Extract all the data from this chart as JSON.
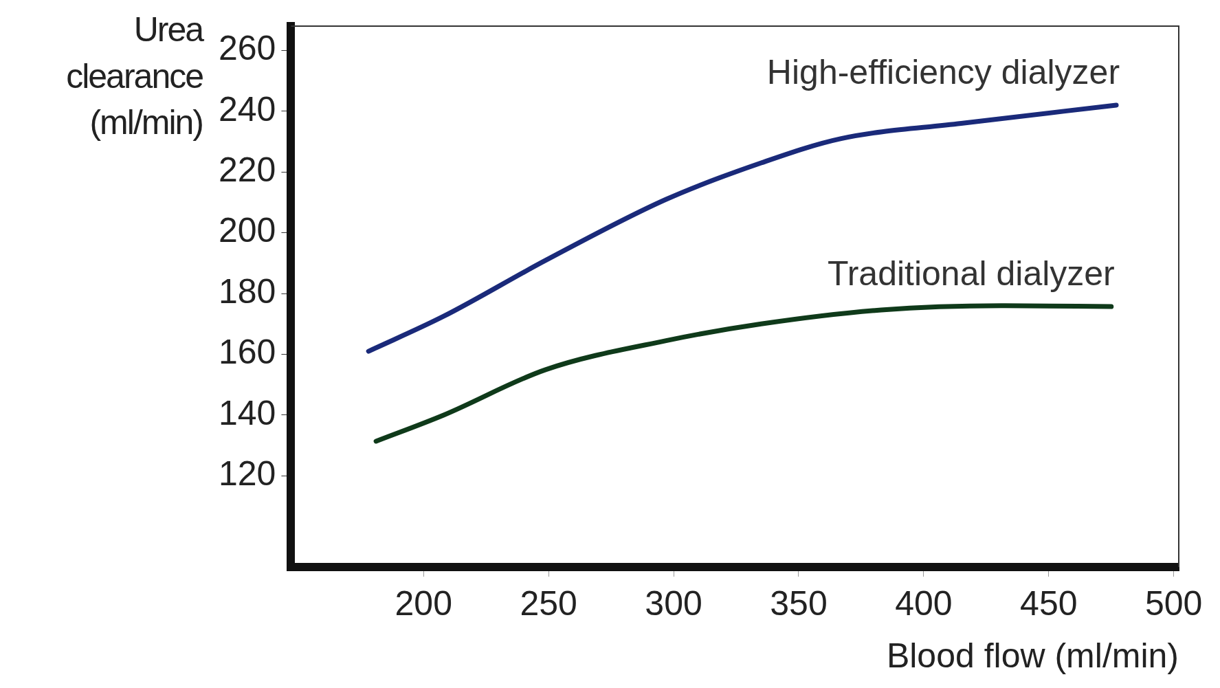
{
  "chart_data": {
    "type": "line",
    "xlabel": "Blood flow (ml/min)",
    "ylabel": "Urea clearance (ml/min)",
    "xlim": [
      147,
      502
    ],
    "xticks": [
      200,
      250,
      300,
      350,
      400,
      450,
      500
    ],
    "ylim": [
      90,
      268
    ],
    "yticks": [
      120,
      140,
      160,
      180,
      200,
      220,
      240,
      260
    ],
    "grid": false,
    "legend": false,
    "marker": "none",
    "line_style": "solid",
    "series": [
      {
        "name": "High-efficiency dialyzer",
        "color": "#1a2a7a",
        "x": [
          178,
          208,
          249,
          297,
          335,
          367,
          415,
          477
        ],
        "values": [
          161,
          172.5,
          191,
          211,
          223,
          231,
          236,
          242
        ]
      },
      {
        "name": "Traditional dialyzer",
        "color": "#0f3a1a",
        "x": [
          181,
          208,
          249,
          297,
          335,
          383,
          431,
          475
        ],
        "values": [
          131.4,
          140,
          155,
          164.5,
          170,
          174.6,
          176,
          175.7
        ]
      }
    ]
  }
}
